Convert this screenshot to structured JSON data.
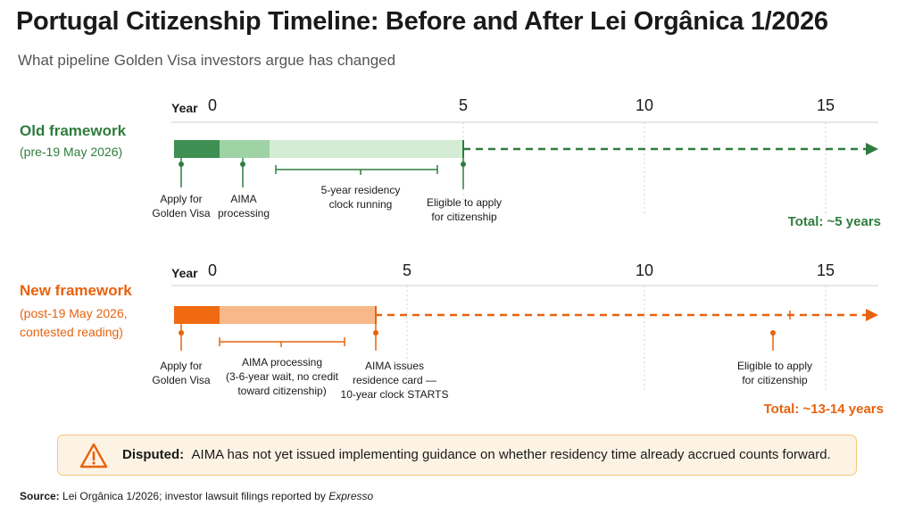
{
  "title": "Portugal Citizenship Timeline: Before and After Lei Orgânica 1/2026",
  "subtitle": "What pipeline Golden Visa investors argue has changed",
  "colors": {
    "old_dark": "#3f8f52",
    "old_mid": "#9fd2a4",
    "old_light": "#d3ecd3",
    "old_accent": "#2e7d3e",
    "new_dark": "#f06a12",
    "new_light": "#f8b98a",
    "new_accent": "#e8620e"
  },
  "axis": {
    "label": "Year",
    "ticks": [
      0,
      5,
      10,
      15
    ]
  },
  "old": {
    "label": "Old framework",
    "sublabel": "(pre-19 May 2026)",
    "total": "Total: ~5 years",
    "annotations": {
      "apply": [
        "Apply for",
        "Golden Visa"
      ],
      "aima": [
        "AIMA",
        "processing"
      ],
      "clock": [
        "5-year residency",
        "clock running"
      ],
      "eligible": [
        "Eligible to apply",
        "for citizenship"
      ]
    }
  },
  "new": {
    "label": "New framework",
    "sublabel": [
      "(post-19 May 2026,",
      "contested reading)"
    ],
    "total": "Total: ~13-14 years",
    "annotations": {
      "apply": [
        "Apply for",
        "Golden Visa"
      ],
      "aima": [
        "AIMA processing",
        "(3-6-year wait, no credit",
        "toward citizenship)"
      ],
      "card": [
        "AIMA issues",
        "residence card —",
        "10-year clock STARTS"
      ],
      "eligible": [
        "Eligible to apply",
        "for citizenship"
      ]
    }
  },
  "callout": {
    "icon": "warning-icon",
    "label": "Disputed:",
    "text": "AIMA has not yet issued implementing guidance on whether residency time already accrued counts forward."
  },
  "source": {
    "label": "Source:",
    "text": "Lei Orgânica 1/2026; investor lawsuit filings reported by",
    "italic": "Expresso"
  }
}
